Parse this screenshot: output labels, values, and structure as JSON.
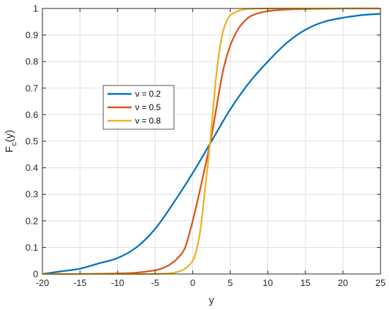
{
  "chart_data": {
    "type": "line",
    "title": "",
    "xlabel": "y",
    "ylabel_main": "F",
    "ylabel_sub": "c",
    "ylabel_rest": "(y)",
    "xlim": [
      -20,
      25
    ],
    "ylim": [
      0,
      1
    ],
    "xticks": [
      -20,
      -15,
      -10,
      -5,
      0,
      5,
      10,
      15,
      20,
      25
    ],
    "yticks": [
      0,
      0.1,
      0.2,
      0.3,
      0.4,
      0.5,
      0.6,
      0.7,
      0.8,
      0.9,
      1
    ],
    "ytick_labels": [
      "0",
      "0.1",
      "0.2",
      "0.3",
      "0.4",
      "0.5",
      "0.6",
      "0.7",
      "0.8",
      "0.9",
      "1"
    ],
    "grid": true,
    "legend_position": "center-left",
    "series": [
      {
        "name": "ν = 0.2",
        "color": "#0072BD",
        "x": [
          -20,
          -17.5,
          -15,
          -12.5,
          -10,
          -7.5,
          -5,
          -2.5,
          0,
          2.3,
          5,
          7.5,
          10,
          12.5,
          15,
          17.5,
          20,
          22.5,
          25
        ],
        "y": [
          0.0,
          0.01,
          0.02,
          0.04,
          0.06,
          0.1,
          0.17,
          0.27,
          0.38,
          0.49,
          0.62,
          0.72,
          0.8,
          0.87,
          0.92,
          0.95,
          0.965,
          0.975,
          0.98
        ]
      },
      {
        "name": "ν = 0.5",
        "color": "#D95319",
        "x": [
          -20,
          -15,
          -10,
          -7.5,
          -5,
          -4,
          -3,
          -2,
          -1,
          0,
          1,
          2.3,
          3,
          4,
          5,
          6,
          7,
          8,
          10,
          12.5,
          15,
          20,
          25
        ],
        "y": [
          0.0,
          0.0,
          0.002,
          0.005,
          0.014,
          0.022,
          0.036,
          0.06,
          0.1,
          0.2,
          0.32,
          0.49,
          0.6,
          0.76,
          0.86,
          0.92,
          0.955,
          0.975,
          0.99,
          0.996,
          0.998,
          1.0,
          1.0
        ]
      },
      {
        "name": "ν = 0.8",
        "color": "#EDB120",
        "x": [
          -20,
          -10,
          -5,
          -3,
          -2,
          -1,
          0,
          0.5,
          1,
          1.5,
          2.3,
          3,
          3.5,
          4,
          4.5,
          5,
          6,
          7,
          8,
          10,
          15,
          25
        ],
        "y": [
          0.0,
          0.0,
          0.0,
          0.003,
          0.008,
          0.02,
          0.05,
          0.09,
          0.16,
          0.28,
          0.49,
          0.71,
          0.83,
          0.91,
          0.95,
          0.975,
          0.99,
          0.997,
          0.999,
          1.0,
          1.0,
          1.0
        ]
      }
    ]
  }
}
